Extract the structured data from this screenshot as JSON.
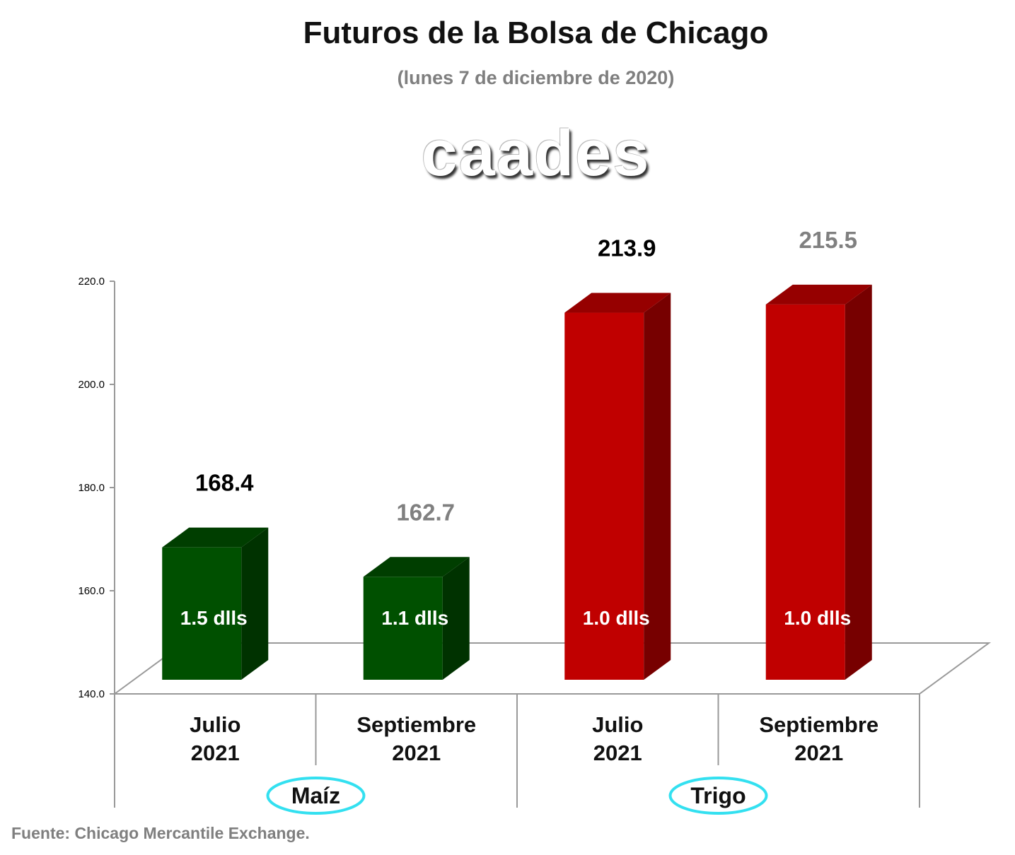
{
  "chart_data": {
    "type": "bar",
    "title": "Futuros de la Bolsa de Chicago",
    "subtitle": "(lunes 7 de diciembre de 2020)",
    "categories": [
      {
        "line1": "Julio",
        "line2": "2021"
      },
      {
        "line1": "Septiembre",
        "line2": "2021"
      },
      {
        "line1": "Julio",
        "line2": "2021"
      },
      {
        "line1": "Septiembre",
        "line2": "2021"
      }
    ],
    "groups": [
      "Maíz",
      "Trigo"
    ],
    "values": [
      168.4,
      162.7,
      213.9,
      215.5
    ],
    "value_labels": [
      "168.4",
      "162.7",
      "213.9",
      "215.5"
    ],
    "inner_labels": [
      "1.5 dlls",
      "1.1 dlls",
      "1.0 dlls",
      "1.0 dlls"
    ],
    "ylim": [
      140,
      220
    ],
    "yticks": [
      "140.0",
      "160.0",
      "180.0",
      "200.0",
      "220.0"
    ],
    "bar_colors": [
      "#005000",
      "#005000",
      "#c00000",
      "#c00000"
    ],
    "value_label_colors": [
      "#000000",
      "#808080",
      "#000000",
      "#808080"
    ],
    "group_ellipse_color": "#33e0f0",
    "grid": false,
    "legend": "none"
  },
  "logo_text": "caades",
  "source": "Fuente: Chicago Mercantile Exchange."
}
